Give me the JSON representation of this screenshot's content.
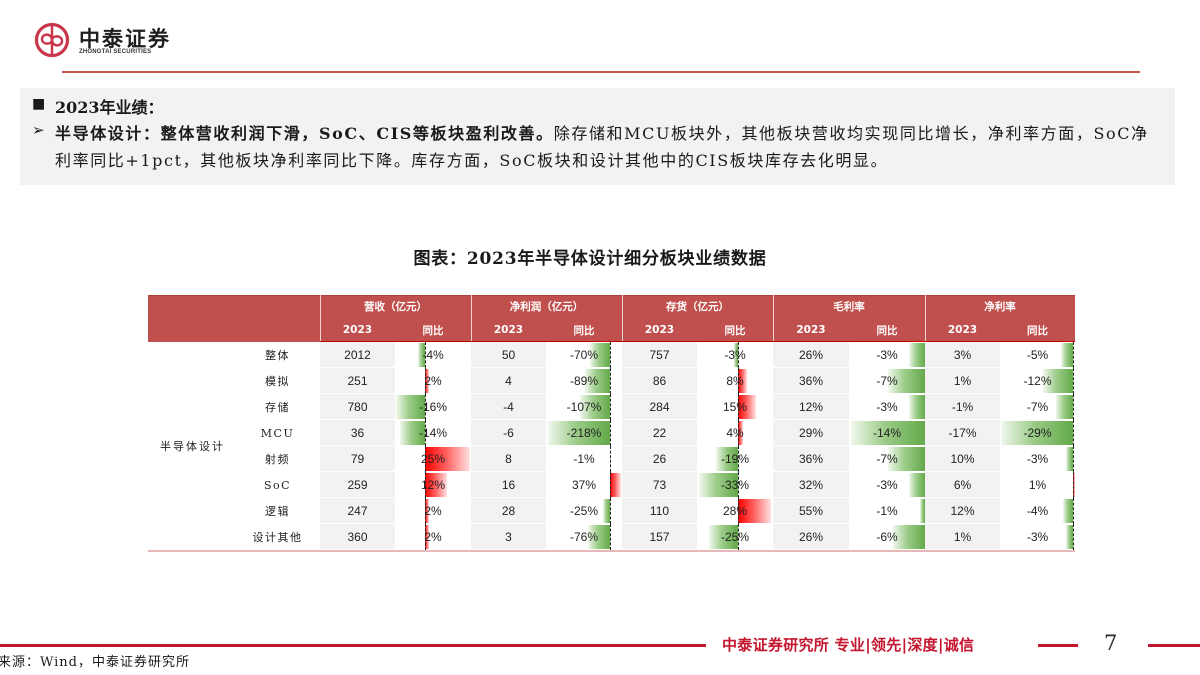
{
  "brand": {
    "name_cn": "中泰证券",
    "name_en": "ZHONGTAI SECURITIES",
    "logo_icon": "zhongtai-logo-icon",
    "accent_color": "#c9504c"
  },
  "summary": {
    "heading_bullet": "■",
    "heading": "2023年业绩：",
    "point_bullet": "➢",
    "point_bold": "半导体设计：整体营收利润下滑，SoC、CIS等板块盈利改善。",
    "point_text": "除存储和MCU板块外，其他板块营收均实现同比增长，净利率方面，SoC净利率同比+1pct，其他板块净利率同比下降。库存方面，SoC板块和设计其他中的CIS板块库存去化明显。"
  },
  "chart_data": {
    "type": "table",
    "title": "图表：2023年半导体设计细分板块业绩数据",
    "row_group": "半导体设计",
    "column_groups": [
      {
        "name": "营收（亿元）",
        "columns": [
          "2023",
          "同比"
        ]
      },
      {
        "name": "净利润（亿元）",
        "columns": [
          "2023",
          "同比"
        ]
      },
      {
        "name": "存货（亿元）",
        "columns": [
          "2023",
          "同比"
        ]
      },
      {
        "name": "毛利率",
        "columns": [
          "2023",
          "同比"
        ]
      },
      {
        "name": "净利率",
        "columns": [
          "2023",
          "同比"
        ]
      }
    ],
    "rows": [
      {
        "segment": "整体",
        "values": [
          "2012",
          "-4%",
          "50",
          "-70%",
          "757",
          "-3%",
          "26%",
          "-3%",
          "3%",
          "-5%"
        ]
      },
      {
        "segment": "模拟",
        "values": [
          "251",
          "2%",
          "4",
          "-89%",
          "86",
          "8%",
          "36%",
          "-7%",
          "1%",
          "-12%"
        ]
      },
      {
        "segment": "存储",
        "values": [
          "780",
          "-16%",
          "-4",
          "-107%",
          "284",
          "15%",
          "12%",
          "-3%",
          "-1%",
          "-7%"
        ]
      },
      {
        "segment": "MCU",
        "values": [
          "36",
          "-14%",
          "-6",
          "-218%",
          "22",
          "4%",
          "29%",
          "-14%",
          "-17%",
          "-29%"
        ]
      },
      {
        "segment": "射频",
        "values": [
          "79",
          "25%",
          "8",
          "-1%",
          "26",
          "-19%",
          "36%",
          "-7%",
          "10%",
          "-3%"
        ]
      },
      {
        "segment": "SoC",
        "values": [
          "259",
          "12%",
          "16",
          "37%",
          "73",
          "-33%",
          "32%",
          "-3%",
          "6%",
          "1%"
        ]
      },
      {
        "segment": "逻辑",
        "values": [
          "247",
          "2%",
          "28",
          "-25%",
          "110",
          "28%",
          "55%",
          "-1%",
          "12%",
          "-4%"
        ]
      },
      {
        "segment": "设计其他",
        "values": [
          "360",
          "2%",
          "3",
          "-76%",
          "157",
          "-25%",
          "26%",
          "-6%",
          "1%",
          "-3%"
        ]
      }
    ],
    "colors": {
      "header_bg": "#c0504d",
      "positive_bar": "#ff0000",
      "negative_bar": "#63a94a",
      "value_cell_bg": "#f2f2f2"
    }
  },
  "footer": {
    "source": "来源：Wind，中泰证券研究所",
    "slogan": "中泰证券研究所 专业|领先|深度|诚信",
    "page_number": "7"
  }
}
